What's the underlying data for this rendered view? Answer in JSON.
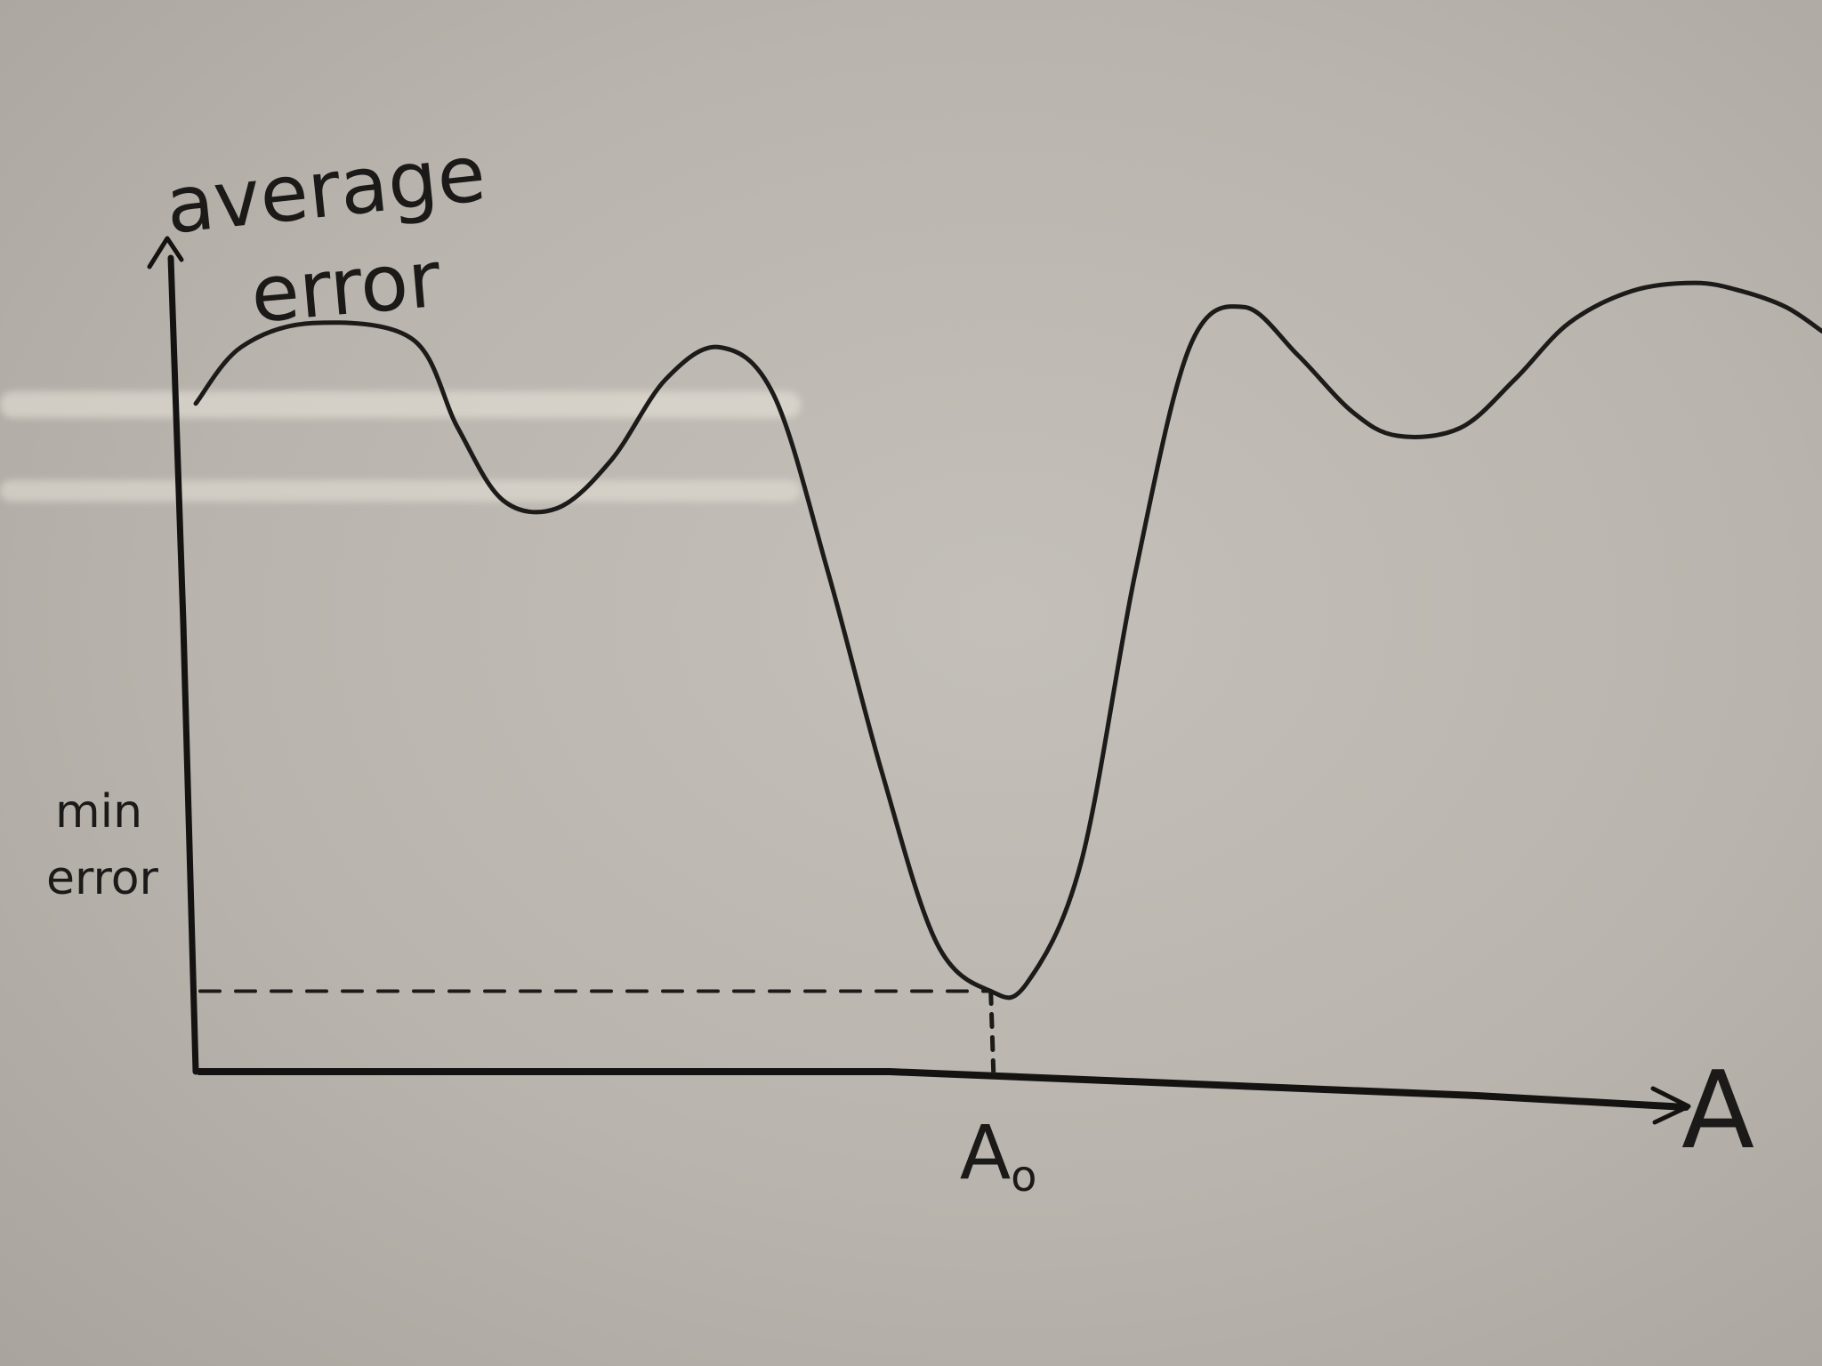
{
  "chart_data": {
    "type": "line",
    "title": "",
    "ylabel_line1": "average",
    "ylabel_line2": "error",
    "xlabel": "A",
    "annotation_x": "A",
    "annotation_x_subscript": "o",
    "annotation_y_line1": "min",
    "annotation_y_line2": "error",
    "xlim": [
      0,
      18
    ],
    "ylim": [
      0,
      10
    ],
    "grid": false,
    "series": [
      {
        "name": "average error",
        "x": [
          0,
          0.5,
          1.3,
          2.4,
          2.9,
          3.4,
          4.0,
          4.6,
          5.2,
          5.8,
          6.4,
          7.0,
          7.6,
          8.2,
          8.8,
          9.2,
          9.8,
          10.4,
          11.0,
          11.6,
          12.2,
          12.8,
          13.3,
          14.0,
          14.6,
          15.2,
          15.9,
          16.6,
          17.1,
          17.6,
          18.0
        ],
        "y": [
          8.3,
          9.0,
          9.3,
          9.1,
          8.0,
          7.1,
          7.0,
          7.6,
          8.6,
          9.0,
          8.4,
          6.2,
          3.7,
          1.6,
          1.0,
          1.1,
          2.6,
          6.2,
          9.0,
          9.5,
          8.9,
          8.2,
          7.9,
          8.0,
          8.6,
          9.3,
          9.7,
          9.8,
          9.7,
          9.5,
          9.2
        ]
      }
    ],
    "minimum": {
      "x": 8.8,
      "y": 1.0
    }
  }
}
